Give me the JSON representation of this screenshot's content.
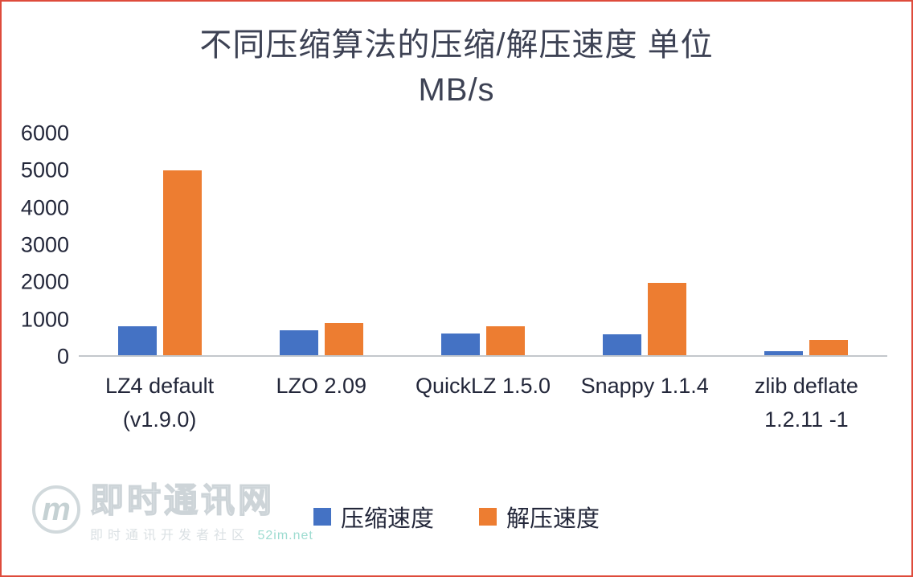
{
  "frame": {
    "border_color": "#de4b3c",
    "background": "#ffffff"
  },
  "chart_data": {
    "type": "bar",
    "title_line1": "不同压缩算法的压缩/解压速度 单位",
    "title_line2": "MB/s",
    "categories": [
      [
        "LZ4 default",
        "(v1.9.0)"
      ],
      [
        "LZO 2.09"
      ],
      [
        "QuickLZ 1.5.0"
      ],
      [
        "Snappy 1.1.4"
      ],
      [
        "zlib deflate",
        "1.2.11 -1"
      ]
    ],
    "series": [
      {
        "name": "压缩速度",
        "color": "#4472c4",
        "values": [
          780,
          670,
          575,
          565,
          100
        ]
      },
      {
        "name": "解压速度",
        "color": "#ed7d31",
        "values": [
          4970,
          860,
          780,
          1950,
          400
        ]
      }
    ],
    "ylim": [
      0,
      6000
    ],
    "yticks": [
      0,
      1000,
      2000,
      3000,
      4000,
      5000,
      6000
    ],
    "ylabel": "",
    "xlabel": "",
    "grid": false,
    "legend_position": "bottom"
  },
  "watermark": {
    "logo_letter": "m",
    "brand": "即时通讯网",
    "subtext": "即时通讯开发者社区",
    "domain": "52im.net"
  }
}
